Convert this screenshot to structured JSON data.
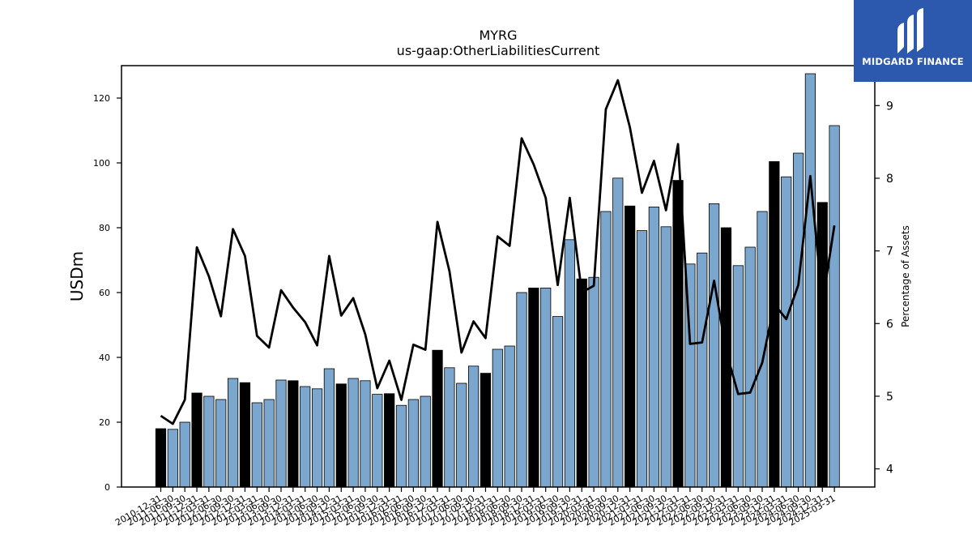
{
  "brand": {
    "name": "MIDGARD FINANCE",
    "accent": "#2c58ad",
    "logo_icon": "midgard-logo-icon"
  },
  "chart_data": {
    "type": "bar",
    "title": "MYRG",
    "subtitle": "us-gaap:OtherLiabilitiesCurrent",
    "ylabel": "USDm",
    "ylabel_right": "Percentage of Assets",
    "ylim": [
      0,
      130
    ],
    "yticks": [
      0,
      20,
      40,
      60,
      80,
      100,
      120
    ],
    "ylim_right": [
      3.75,
      9.55
    ],
    "yticks_right": [
      4,
      5,
      6,
      7,
      8,
      9
    ],
    "colors": {
      "annual_bar": "#000000",
      "quarter_bar": "#7ba7cf",
      "line": "#000000"
    },
    "categories": [
      "2010-12-31",
      "2011-06-30",
      "2011-09-30",
      "2011-12-31",
      "2012-03-31",
      "2012-06-30",
      "2012-09-30",
      "2012-12-31",
      "2013-03-31",
      "2013-06-30",
      "2013-09-30",
      "2013-12-31",
      "2014-03-31",
      "2014-06-30",
      "2014-09-30",
      "2014-12-31",
      "2015-03-31",
      "2015-06-30",
      "2015-09-30",
      "2015-12-31",
      "2016-03-31",
      "2016-06-30",
      "2016-09-30",
      "2016-12-31",
      "2017-03-31",
      "2017-06-30",
      "2017-09-30",
      "2017-12-31",
      "2018-03-31",
      "2018-06-30",
      "2018-09-30",
      "2018-12-31",
      "2019-03-31",
      "2019-06-30",
      "2019-09-30",
      "2019-12-31",
      "2020-03-31",
      "2020-06-30",
      "2020-09-30",
      "2020-12-31",
      "2021-03-31",
      "2021-06-30",
      "2021-09-30",
      "2021-12-31",
      "2022-03-31",
      "2022-06-30",
      "2022-09-30",
      "2022-12-31",
      "2023-03-31",
      "2023-06-30",
      "2023-09-30",
      "2023-12-31",
      "2024-03-31",
      "2024-06-30",
      "2024-09-30",
      "2024-12-31",
      "2025-03-31"
    ],
    "series": [
      {
        "name": "",
        "type": "bar",
        "values": [
          18,
          17.8,
          20,
          29,
          28,
          27,
          33.5,
          32.2,
          26,
          27,
          33,
          32.8,
          31,
          30.3,
          36.5,
          31.8,
          33.5,
          32.8,
          28.6,
          28.8,
          25.2,
          27,
          28,
          42.2,
          36.8,
          32,
          37.3,
          35.1,
          42.5,
          43.5,
          60,
          61.4,
          61.4,
          52.6,
          76.3,
          64.2,
          64.7,
          85,
          95.3,
          86.7,
          79.1,
          86.4,
          80.3,
          94.6,
          68.8,
          72.2,
          87.4,
          80,
          68.3,
          74,
          85,
          100.4,
          95.7,
          103,
          127.5,
          87.8,
          111.5
        ],
        "annual": [
          true,
          false,
          false,
          true,
          false,
          false,
          false,
          true,
          false,
          false,
          false,
          true,
          false,
          false,
          false,
          true,
          false,
          false,
          false,
          true,
          false,
          false,
          false,
          true,
          false,
          false,
          false,
          true,
          false,
          false,
          false,
          true,
          false,
          false,
          false,
          true,
          false,
          false,
          false,
          true,
          false,
          false,
          false,
          true,
          false,
          false,
          false,
          true,
          false,
          false,
          false,
          true,
          false,
          false,
          false,
          true,
          false
        ]
      },
      {
        "name": "",
        "type": "line",
        "axis": "right",
        "values": [
          4.73,
          4.62,
          4.95,
          7.05,
          6.65,
          6.1,
          7.3,
          6.93,
          5.83,
          5.67,
          6.46,
          6.22,
          6.02,
          5.7,
          6.93,
          6.11,
          6.35,
          5.85,
          5.11,
          5.49,
          4.95,
          5.71,
          5.64,
          7.4,
          6.72,
          5.6,
          6.03,
          5.8,
          7.2,
          7.07,
          8.55,
          8.19,
          7.73,
          6.53,
          7.73,
          6.43,
          6.52,
          8.95,
          9.35,
          8.7,
          7.8,
          8.24,
          7.56,
          8.47,
          5.72,
          5.74,
          6.59,
          5.62,
          5.03,
          5.05,
          5.46,
          6.27,
          6.06,
          6.53,
          8.03,
          6.28,
          7.35
        ]
      }
    ]
  }
}
